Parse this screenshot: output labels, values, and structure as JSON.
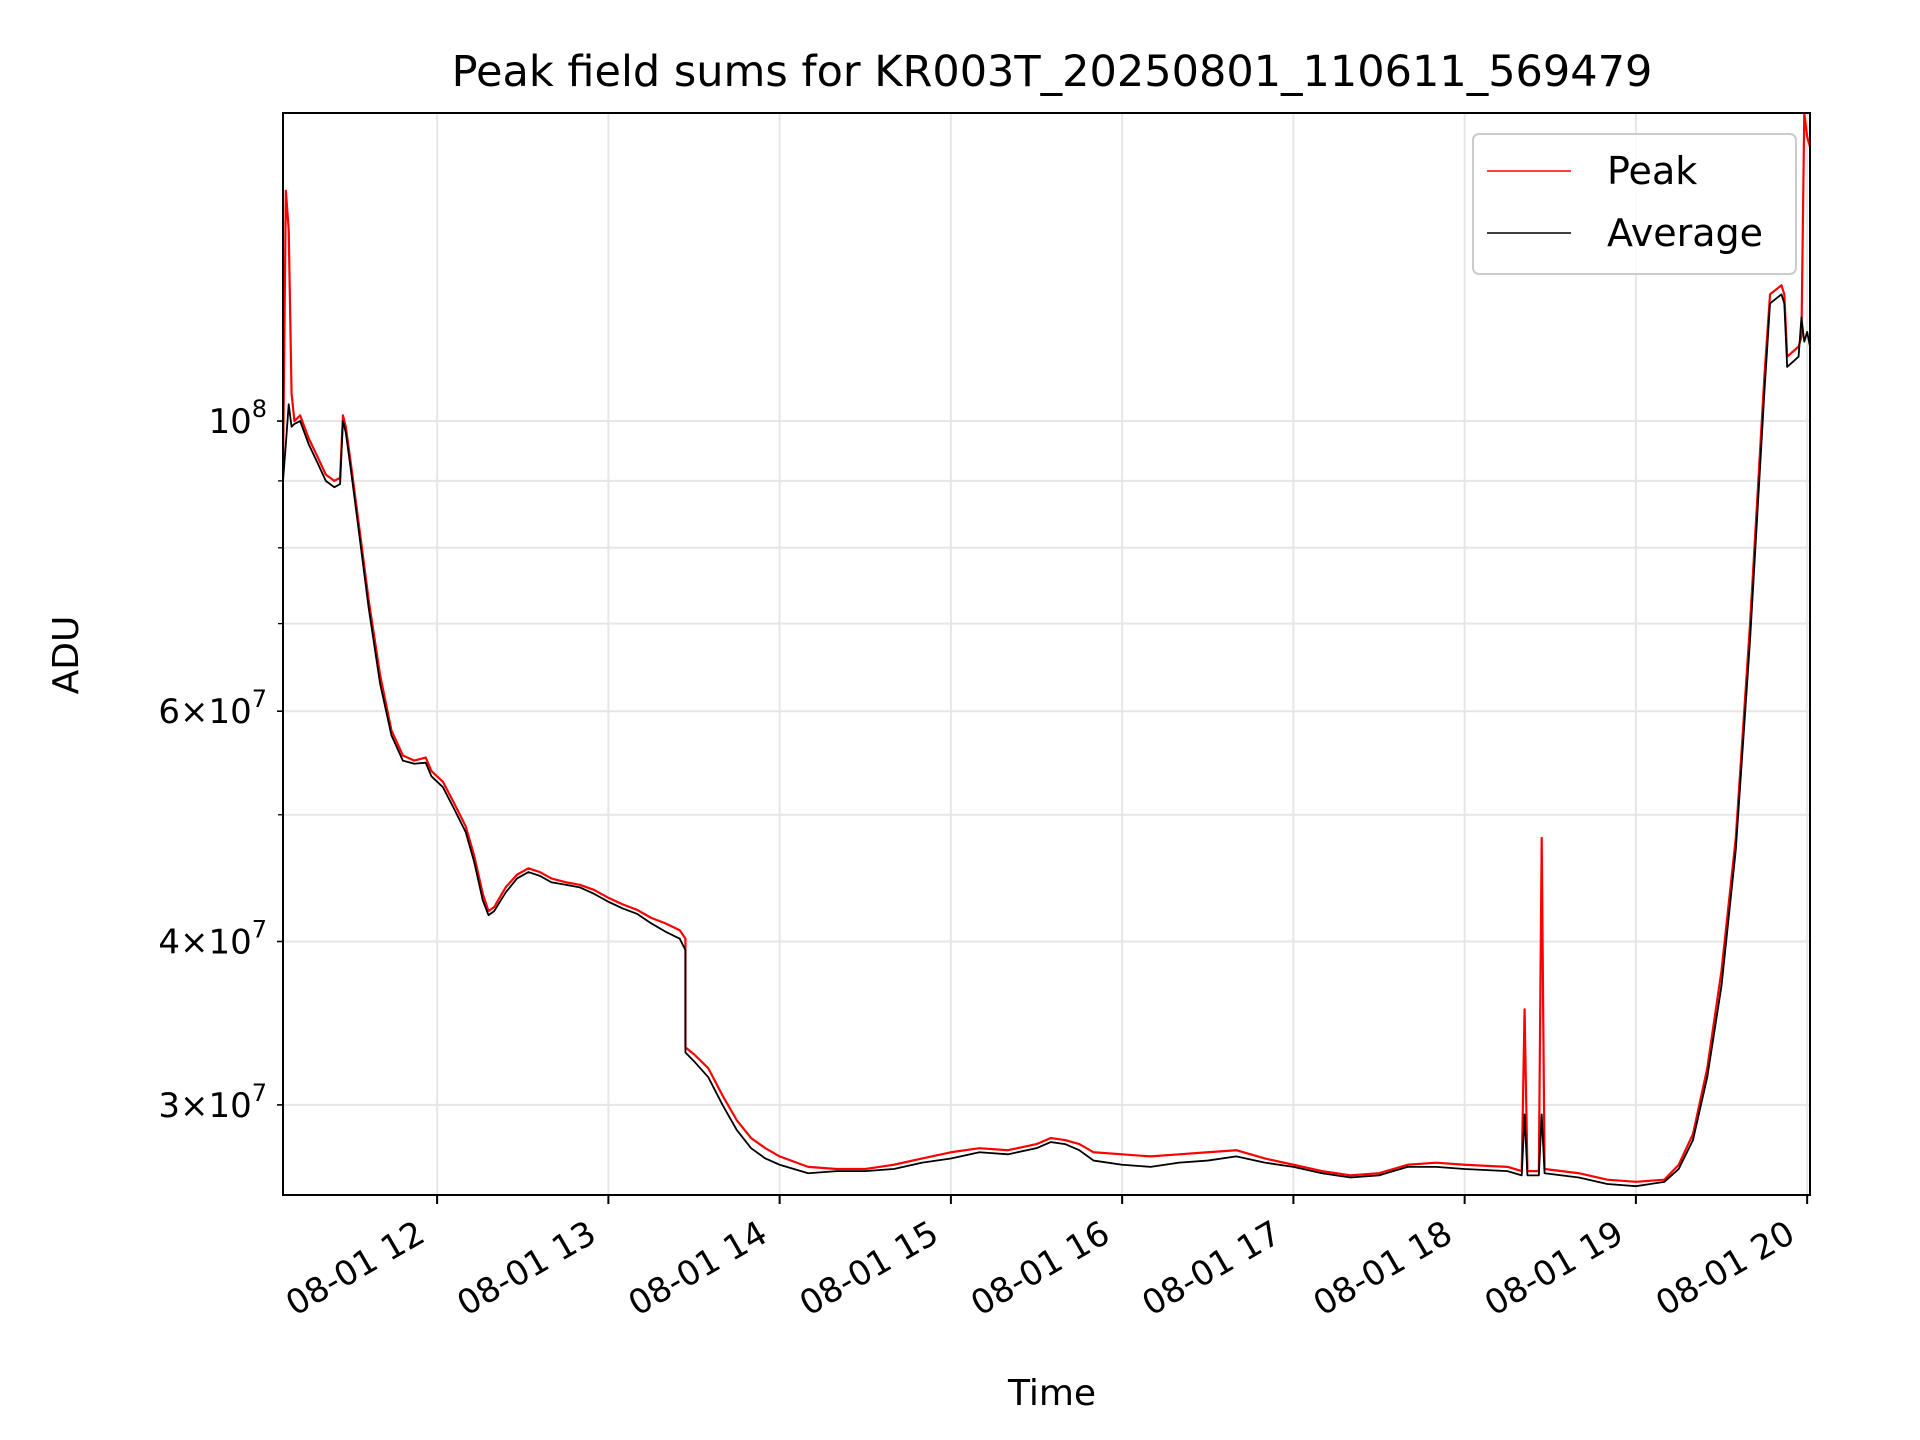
{
  "chart_data": {
    "type": "line",
    "title": "Peak field sums for KR003T_20250801_110611_569479",
    "xlabel": "Time",
    "ylabel": "ADU",
    "yscale": "log",
    "xlim": [
      "08-01 11:06",
      "08-01 20:01"
    ],
    "ylim": [
      25600000,
      172000000
    ],
    "grid": true,
    "legend_position": "top-right",
    "x_ticks": [
      "08-01 12",
      "08-01 13",
      "08-01 14",
      "08-01 15",
      "08-01 16",
      "08-01 17",
      "08-01 18",
      "08-01 19",
      "08-01 20"
    ],
    "y_tick_labels": [
      {
        "value": 30000000,
        "mantissa": "3",
        "exponent": "7"
      },
      {
        "value": 40000000,
        "mantissa": "4",
        "exponent": "7"
      },
      {
        "value": 60000000,
        "mantissa": "6",
        "exponent": "7"
      },
      {
        "value": 100000000,
        "mantissa": "",
        "exponent": "8"
      }
    ],
    "y_minor_ticks": [
      50000000,
      70000000,
      80000000,
      90000000
    ],
    "series": [
      {
        "name": "Peak",
        "color": "#ff0000",
        "points": [
          [
            "08-01 11:06",
            92000000
          ],
          [
            "08-01 11:07",
            150000000
          ],
          [
            "08-01 11:08",
            140000000
          ],
          [
            "08-01 11:09",
            105000000
          ],
          [
            "08-01 11:10",
            100000000
          ],
          [
            "08-01 11:12",
            101000000
          ],
          [
            "08-01 11:15",
            97000000
          ],
          [
            "08-01 11:18",
            94000000
          ],
          [
            "08-01 11:21",
            91000000
          ],
          [
            "08-01 11:24",
            90000000
          ],
          [
            "08-01 11:26",
            90500000
          ],
          [
            "08-01 11:27",
            101000000
          ],
          [
            "08-01 11:28",
            99000000
          ],
          [
            "08-01 11:30",
            92000000
          ],
          [
            "08-01 11:33",
            82000000
          ],
          [
            "08-01 11:36",
            73000000
          ],
          [
            "08-01 11:40",
            64000000
          ],
          [
            "08-01 11:44",
            58000000
          ],
          [
            "08-01 11:48",
            55500000
          ],
          [
            "08-01 11:52",
            55000000
          ],
          [
            "08-01 11:56",
            55300000
          ],
          [
            "08-01 11:58",
            54000000
          ],
          [
            "08-01 12:02",
            53000000
          ],
          [
            "08-01 12:06",
            51000000
          ],
          [
            "08-01 12:10",
            49000000
          ],
          [
            "08-01 12:13",
            46500000
          ],
          [
            "08-01 12:16",
            43500000
          ],
          [
            "08-01 12:18",
            42200000
          ],
          [
            "08-01 12:20",
            42500000
          ],
          [
            "08-01 12:24",
            44000000
          ],
          [
            "08-01 12:28",
            45000000
          ],
          [
            "08-01 12:32",
            45500000
          ],
          [
            "08-01 12:36",
            45200000
          ],
          [
            "08-01 12:40",
            44700000
          ],
          [
            "08-01 12:45",
            44400000
          ],
          [
            "08-01 12:50",
            44200000
          ],
          [
            "08-01 12:55",
            43800000
          ],
          [
            "08-01 13:00",
            43200000
          ],
          [
            "08-01 13:05",
            42700000
          ],
          [
            "08-01 13:10",
            42300000
          ],
          [
            "08-01 13:15",
            41700000
          ],
          [
            "08-01 13:20",
            41300000
          ],
          [
            "08-01 13:25",
            40800000
          ],
          [
            "08-01 13:27",
            40200000
          ],
          [
            "08-01 13:27",
            33200000
          ],
          [
            "08-01 13:30",
            32800000
          ],
          [
            "08-01 13:35",
            32000000
          ],
          [
            "08-01 13:40",
            30500000
          ],
          [
            "08-01 13:45",
            29200000
          ],
          [
            "08-01 13:50",
            28300000
          ],
          [
            "08-01 13:55",
            27800000
          ],
          [
            "08-01 14:00",
            27400000
          ],
          [
            "08-01 14:10",
            26900000
          ],
          [
            "08-01 14:20",
            26800000
          ],
          [
            "08-01 14:30",
            26800000
          ],
          [
            "08-01 14:40",
            27000000
          ],
          [
            "08-01 14:50",
            27300000
          ],
          [
            "08-01 15:00",
            27600000
          ],
          [
            "08-01 15:10",
            27800000
          ],
          [
            "08-01 15:20",
            27700000
          ],
          [
            "08-01 15:30",
            28000000
          ],
          [
            "08-01 15:35",
            28300000
          ],
          [
            "08-01 15:40",
            28200000
          ],
          [
            "08-01 15:45",
            28000000
          ],
          [
            "08-01 15:50",
            27600000
          ],
          [
            "08-01 16:00",
            27500000
          ],
          [
            "08-01 16:10",
            27400000
          ],
          [
            "08-01 16:20",
            27500000
          ],
          [
            "08-01 16:30",
            27600000
          ],
          [
            "08-01 16:40",
            27700000
          ],
          [
            "08-01 16:50",
            27300000
          ],
          [
            "08-01 17:00",
            27000000
          ],
          [
            "08-01 17:10",
            26700000
          ],
          [
            "08-01 17:20",
            26500000
          ],
          [
            "08-01 17:30",
            26600000
          ],
          [
            "08-01 17:40",
            27000000
          ],
          [
            "08-01 17:50",
            27100000
          ],
          [
            "08-01 18:00",
            27000000
          ],
          [
            "08-01 18:15",
            26900000
          ],
          [
            "08-01 18:20",
            26700000
          ],
          [
            "08-01 18:21",
            35500000
          ],
          [
            "08-01 18:22",
            26700000
          ],
          [
            "08-01 18:26",
            26700000
          ],
          [
            "08-01 18:27",
            48000000
          ],
          [
            "08-01 18:28",
            26800000
          ],
          [
            "08-01 18:40",
            26600000
          ],
          [
            "08-01 18:50",
            26300000
          ],
          [
            "08-01 19:00",
            26200000
          ],
          [
            "08-01 19:10",
            26300000
          ],
          [
            "08-01 19:15",
            27000000
          ],
          [
            "08-01 19:20",
            28500000
          ],
          [
            "08-01 19:25",
            32000000
          ],
          [
            "08-01 19:30",
            38000000
          ],
          [
            "08-01 19:35",
            48000000
          ],
          [
            "08-01 19:40",
            70000000
          ],
          [
            "08-01 19:45",
            108000000
          ],
          [
            "08-01 19:47",
            125000000
          ],
          [
            "08-01 19:51",
            127000000
          ],
          [
            "08-01 19:52",
            125000000
          ],
          [
            "08-01 19:53",
            112000000
          ],
          [
            "08-01 19:57",
            114000000
          ],
          [
            "08-01 19:58",
            116000000
          ],
          [
            "08-01 19:59",
            172000000
          ],
          [
            "08-01 20:00",
            165000000
          ],
          [
            "08-01 20:01",
            162000000
          ]
        ]
      },
      {
        "name": "Average",
        "color": "#000000",
        "points": [
          [
            "08-01 11:06",
            90000000
          ],
          [
            "08-01 11:07",
            96000000
          ],
          [
            "08-01 11:08",
            103000000
          ],
          [
            "08-01 11:09",
            99000000
          ],
          [
            "08-01 11:10",
            99500000
          ],
          [
            "08-01 11:12",
            100000000
          ],
          [
            "08-01 11:15",
            96000000
          ],
          [
            "08-01 11:18",
            93000000
          ],
          [
            "08-01 11:21",
            90000000
          ],
          [
            "08-01 11:24",
            89000000
          ],
          [
            "08-01 11:26",
            89500000
          ],
          [
            "08-01 11:27",
            100000000
          ],
          [
            "08-01 11:28",
            98000000
          ],
          [
            "08-01 11:30",
            91000000
          ],
          [
            "08-01 11:33",
            81000000
          ],
          [
            "08-01 11:36",
            72000000
          ],
          [
            "08-01 11:40",
            63000000
          ],
          [
            "08-01 11:44",
            57500000
          ],
          [
            "08-01 11:48",
            55000000
          ],
          [
            "08-01 11:52",
            54700000
          ],
          [
            "08-01 11:56",
            54800000
          ],
          [
            "08-01 11:58",
            53500000
          ],
          [
            "08-01 12:02",
            52500000
          ],
          [
            "08-01 12:06",
            50500000
          ],
          [
            "08-01 12:10",
            48500000
          ],
          [
            "08-01 12:13",
            46000000
          ],
          [
            "08-01 12:16",
            43000000
          ],
          [
            "08-01 12:18",
            41900000
          ],
          [
            "08-01 12:20",
            42200000
          ],
          [
            "08-01 12:24",
            43600000
          ],
          [
            "08-01 12:28",
            44700000
          ],
          [
            "08-01 12:32",
            45200000
          ],
          [
            "08-01 12:36",
            44900000
          ],
          [
            "08-01 12:40",
            44400000
          ],
          [
            "08-01 12:45",
            44200000
          ],
          [
            "08-01 12:50",
            44000000
          ],
          [
            "08-01 12:55",
            43500000
          ],
          [
            "08-01 13:00",
            42900000
          ],
          [
            "08-01 13:05",
            42400000
          ],
          [
            "08-01 13:10",
            42000000
          ],
          [
            "08-01 13:15",
            41300000
          ],
          [
            "08-01 13:20",
            40700000
          ],
          [
            "08-01 13:25",
            40200000
          ],
          [
            "08-01 13:27",
            39400000
          ],
          [
            "08-01 13:27",
            32900000
          ],
          [
            "08-01 13:30",
            32400000
          ],
          [
            "08-01 13:35",
            31500000
          ],
          [
            "08-01 13:40",
            30000000
          ],
          [
            "08-01 13:45",
            28700000
          ],
          [
            "08-01 13:50",
            27800000
          ],
          [
            "08-01 13:55",
            27300000
          ],
          [
            "08-01 14:00",
            27000000
          ],
          [
            "08-01 14:10",
            26600000
          ],
          [
            "08-01 14:20",
            26700000
          ],
          [
            "08-01 14:30",
            26700000
          ],
          [
            "08-01 14:40",
            26800000
          ],
          [
            "08-01 14:50",
            27100000
          ],
          [
            "08-01 15:00",
            27300000
          ],
          [
            "08-01 15:10",
            27600000
          ],
          [
            "08-01 15:20",
            27500000
          ],
          [
            "08-01 15:30",
            27800000
          ],
          [
            "08-01 15:35",
            28100000
          ],
          [
            "08-01 15:40",
            28000000
          ],
          [
            "08-01 15:45",
            27700000
          ],
          [
            "08-01 15:50",
            27200000
          ],
          [
            "08-01 16:00",
            27000000
          ],
          [
            "08-01 16:10",
            26900000
          ],
          [
            "08-01 16:20",
            27100000
          ],
          [
            "08-01 16:30",
            27200000
          ],
          [
            "08-01 16:40",
            27400000
          ],
          [
            "08-01 16:50",
            27100000
          ],
          [
            "08-01 17:00",
            26900000
          ],
          [
            "08-01 17:10",
            26600000
          ],
          [
            "08-01 17:20",
            26400000
          ],
          [
            "08-01 17:30",
            26500000
          ],
          [
            "08-01 17:40",
            26900000
          ],
          [
            "08-01 17:50",
            26900000
          ],
          [
            "08-01 18:00",
            26800000
          ],
          [
            "08-01 18:15",
            26700000
          ],
          [
            "08-01 18:20",
            26500000
          ],
          [
            "08-01 18:21",
            29500000
          ],
          [
            "08-01 18:22",
            26500000
          ],
          [
            "08-01 18:26",
            26500000
          ],
          [
            "08-01 18:27",
            29500000
          ],
          [
            "08-01 18:28",
            26600000
          ],
          [
            "08-01 18:40",
            26400000
          ],
          [
            "08-01 18:50",
            26100000
          ],
          [
            "08-01 19:00",
            26000000
          ],
          [
            "08-01 19:10",
            26200000
          ],
          [
            "08-01 19:15",
            26800000
          ],
          [
            "08-01 19:20",
            28200000
          ],
          [
            "08-01 19:25",
            31500000
          ],
          [
            "08-01 19:30",
            37000000
          ],
          [
            "08-01 19:35",
            47000000
          ],
          [
            "08-01 19:40",
            68000000
          ],
          [
            "08-01 19:45",
            105000000
          ],
          [
            "08-01 19:47",
            123000000
          ],
          [
            "08-01 19:51",
            125000000
          ],
          [
            "08-01 19:52",
            123000000
          ],
          [
            "08-01 19:53",
            110000000
          ],
          [
            "08-01 19:57",
            112000000
          ],
          [
            "08-01 19:58",
            120000000
          ],
          [
            "08-01 19:59",
            115000000
          ],
          [
            "08-01 20:00",
            117000000
          ],
          [
            "08-01 20:01",
            114000000
          ]
        ]
      }
    ]
  }
}
